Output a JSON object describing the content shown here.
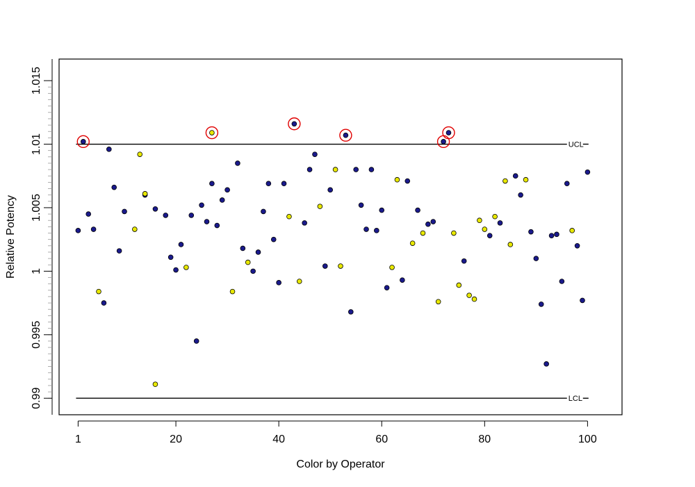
{
  "chart_data": {
    "type": "scatter",
    "title": "",
    "xlabel": "Color by Operator",
    "ylabel": "Relative Potency",
    "xlim": [
      -2.7,
      106.7
    ],
    "ylim": [
      0.9887,
      1.0167
    ],
    "x_ticks": [
      {
        "value": 1,
        "label": "1"
      },
      {
        "value": 20,
        "label": "20"
      },
      {
        "value": 40,
        "label": "40"
      },
      {
        "value": 60,
        "label": "60"
      },
      {
        "value": 80,
        "label": "80"
      },
      {
        "value": 100,
        "label": "100"
      }
    ],
    "y_ticks": [
      {
        "value": 0.99,
        "label": "0.99"
      },
      {
        "value": 0.995,
        "label": "0.995"
      },
      {
        "value": 1.0,
        "label": "1"
      },
      {
        "value": 1.005,
        "label": "1.005"
      },
      {
        "value": 1.01,
        "label": "1.01"
      },
      {
        "value": 1.015,
        "label": "1.015"
      }
    ],
    "y_minor_step": 0.0005,
    "grid": false,
    "legend": "none",
    "control_limits": [
      {
        "name": "UCL",
        "value": 1.01,
        "x_start": 0.6,
        "x_end": 96
      },
      {
        "name": "LCL",
        "value": 0.99,
        "x_start": 0.6,
        "x_end": 96
      }
    ],
    "colors": {
      "navy": "#1a1a8c",
      "yellow": "#e8e800",
      "outline": "#000000",
      "highlight": "#e00000"
    },
    "series": [
      {
        "color": "navy",
        "x": [
          1,
          2,
          3,
          4,
          6,
          7,
          8,
          9,
          10,
          14,
          16,
          18,
          19,
          20,
          21,
          23,
          24,
          25,
          26,
          27,
          28,
          29,
          30,
          32,
          33,
          35,
          36,
          37,
          38,
          39,
          40,
          41,
          43,
          45,
          46,
          47,
          49,
          50,
          53,
          54,
          55,
          56,
          57,
          58,
          59,
          60,
          61,
          64,
          65,
          67,
          69,
          70,
          72,
          73,
          76,
          81,
          83,
          86,
          87,
          89,
          90,
          91,
          92,
          93,
          94,
          95,
          96,
          98,
          99,
          100
        ],
        "y": [
          1.0032,
          1.0102,
          1.0045,
          1.0033,
          0.9975,
          1.0096,
          1.0066,
          1.0016,
          1.0047,
          1.006,
          1.0049,
          1.0044,
          1.0011,
          1.0001,
          1.0021,
          1.0044,
          0.9945,
          1.0052,
          1.0039,
          1.0069,
          1.0036,
          1.0056,
          1.0064,
          1.0085,
          1.0018,
          1.0,
          1.0015,
          1.0047,
          1.0069,
          1.0025,
          0.9991,
          1.0069,
          1.0116,
          1.0038,
          1.008,
          1.0092,
          1.0004,
          1.0064,
          1.0107,
          0.9968,
          1.008,
          1.0052,
          1.0033,
          1.008,
          1.0032,
          1.0048,
          0.9987,
          0.9993,
          1.0071,
          1.0048,
          1.0037,
          1.0039,
          1.0102,
          1.0109,
          1.0008,
          1.0028,
          1.0038,
          1.0075,
          1.006,
          1.0031,
          1.001,
          0.9974,
          0.9927,
          1.0028,
          1.0029,
          0.9992,
          1.0069,
          1.002,
          0.9977,
          1.0078
        ]
      },
      {
        "color": "yellow",
        "x": [
          5,
          12,
          13,
          14,
          16,
          22,
          27,
          31,
          34,
          42,
          44,
          48,
          51,
          52,
          62,
          63,
          66,
          68,
          71,
          74,
          75,
          77,
          78,
          79,
          80,
          82,
          84,
          85,
          88,
          97
        ],
        "y": [
          0.9984,
          1.0033,
          1.0092,
          1.0061,
          0.9911,
          1.0003,
          1.0109,
          0.9984,
          1.0007,
          1.0043,
          0.9992,
          1.0051,
          1.008,
          1.0004,
          1.0003,
          1.0072,
          1.0022,
          1.003,
          0.9976,
          1.003,
          0.9989,
          0.9981,
          0.9978,
          1.004,
          1.0033,
          1.0043,
          1.0071,
          1.0021,
          1.0072,
          1.0032
        ]
      }
    ],
    "highlighted_points": [
      {
        "x": 2,
        "y": 1.0102
      },
      {
        "x": 27,
        "y": 1.0109
      },
      {
        "x": 43,
        "y": 1.0116
      },
      {
        "x": 53,
        "y": 1.0107
      },
      {
        "x": 72,
        "y": 1.0102
      },
      {
        "x": 73,
        "y": 1.0109
      }
    ]
  }
}
